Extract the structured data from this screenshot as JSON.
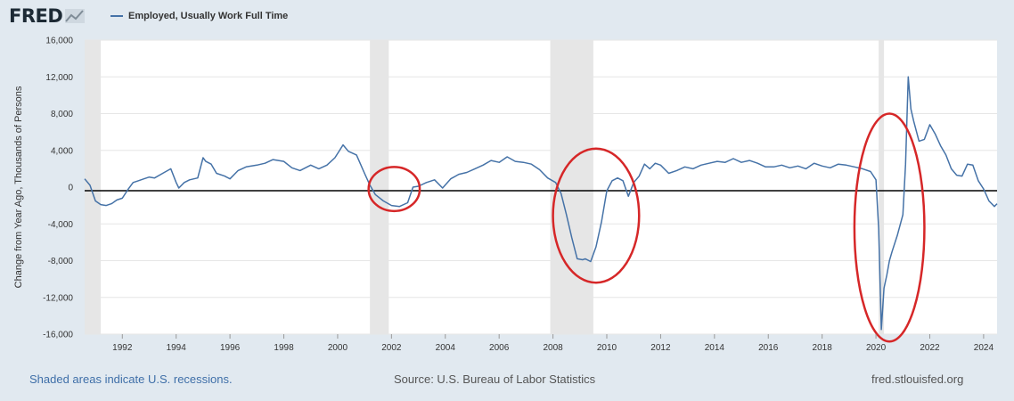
{
  "brand": {
    "logo_text": "FRED"
  },
  "colors": {
    "series": "#4572a7",
    "recession": "#e6e6e6",
    "annotation": "#d62728",
    "zero_line": "#000000",
    "background": "#e1e9f0",
    "plot_background": "#ffffff"
  },
  "footer": {
    "note": "Shaded areas indicate U.S. recessions.",
    "source": "Source: U.S. Bureau of Labor Statistics",
    "site": "fred.stlouisfed.org"
  },
  "chart_data": {
    "type": "line",
    "title": "",
    "xlabel": "",
    "ylabel": "Change from Year Ago, Thousands of Persons",
    "xlim": [
      1990.6,
      2024.5
    ],
    "ylim": [
      -16000,
      16000
    ],
    "grid": true,
    "legend": "top-left",
    "y_ticks": [
      16000,
      12000,
      8000,
      4000,
      0,
      -4000,
      -8000,
      -12000,
      -16000
    ],
    "y_tick_labels": [
      "16,000",
      "12,000",
      "8,000",
      "4,000",
      "0",
      "-4,000",
      "-8,000",
      "-12,000",
      "-16,000"
    ],
    "x_ticks": [
      1992,
      1994,
      1996,
      1998,
      2000,
      2002,
      2004,
      2006,
      2008,
      2010,
      2012,
      2014,
      2016,
      2018,
      2020,
      2022,
      2024
    ],
    "x_tick_labels": [
      "1992",
      "1994",
      "1996",
      "1998",
      "2000",
      "2002",
      "2004",
      "2006",
      "2008",
      "2010",
      "2012",
      "2014",
      "2016",
      "2018",
      "2020",
      "2022",
      "2024"
    ],
    "recessions": [
      [
        1990.6,
        1991.2
      ],
      [
        2001.2,
        2001.9
      ],
      [
        2007.9,
        2009.5
      ],
      [
        2020.1,
        2020.3
      ]
    ],
    "annotations": [
      {
        "type": "ellipse",
        "center": [
          2002.1,
          -200
        ],
        "radius": [
          0.95,
          2400
        ]
      },
      {
        "type": "ellipse",
        "center": [
          2009.6,
          -3100
        ],
        "radius": [
          1.6,
          7300
        ]
      },
      {
        "type": "ellipse",
        "center": [
          2020.5,
          -4400
        ],
        "radius": [
          1.3,
          12400
        ]
      }
    ],
    "series": [
      {
        "name": "Employed, Usually Work Full Time",
        "x": [
          1990.6,
          1990.8,
          1991.0,
          1991.2,
          1991.4,
          1991.6,
          1991.8,
          1992.0,
          1992.2,
          1992.4,
          1992.6,
          1992.8,
          1993.0,
          1993.2,
          1993.5,
          1993.8,
          1994.0,
          1994.1,
          1994.3,
          1994.5,
          1994.8,
          1995.0,
          1995.1,
          1995.3,
          1995.5,
          1995.8,
          1996.0,
          1996.3,
          1996.6,
          1997.0,
          1997.3,
          1997.6,
          1998.0,
          1998.3,
          1998.6,
          1999.0,
          1999.3,
          1999.6,
          1999.9,
          2000.2,
          2000.4,
          2000.7,
          2001.0,
          2001.2,
          2001.4,
          2001.7,
          2002.0,
          2002.3,
          2002.6,
          2002.8,
          2003.0,
          2003.3,
          2003.6,
          2003.9,
          2004.2,
          2004.5,
          2004.8,
          2005.1,
          2005.4,
          2005.7,
          2006.0,
          2006.3,
          2006.6,
          2006.9,
          2007.2,
          2007.5,
          2007.8,
          2008.1,
          2008.3,
          2008.5,
          2008.7,
          2008.9,
          2009.1,
          2009.2,
          2009.4,
          2009.6,
          2009.8,
          2010.0,
          2010.2,
          2010.4,
          2010.6,
          2010.8,
          2011.0,
          2011.2,
          2011.4,
          2011.6,
          2011.8,
          2012.0,
          2012.3,
          2012.6,
          2012.9,
          2013.2,
          2013.5,
          2013.8,
          2014.1,
          2014.4,
          2014.7,
          2015.0,
          2015.3,
          2015.6,
          2015.9,
          2016.2,
          2016.5,
          2016.8,
          2017.1,
          2017.4,
          2017.7,
          2018.0,
          2018.3,
          2018.6,
          2018.9,
          2019.2,
          2019.5,
          2019.8,
          2020.0,
          2020.1,
          2020.2,
          2020.3,
          2020.4,
          2020.5,
          2020.6,
          2020.8,
          2021.0,
          2021.1,
          2021.2,
          2021.3,
          2021.4,
          2021.6,
          2021.8,
          2022.0,
          2022.2,
          2022.4,
          2022.6,
          2022.8,
          2023.0,
          2023.2,
          2023.4,
          2023.6,
          2023.8,
          2024.0,
          2024.2,
          2024.4,
          2024.5
        ],
        "values": [
          900,
          200,
          -1500,
          -1900,
          -2000,
          -1800,
          -1400,
          -1200,
          -300,
          500,
          700,
          900,
          1100,
          1000,
          1500,
          2000,
          500,
          -100,
          500,
          800,
          1000,
          3200,
          2800,
          2500,
          1500,
          1200,
          900,
          1800,
          2200,
          2400,
          2600,
          3000,
          2800,
          2100,
          1800,
          2400,
          2000,
          2400,
          3200,
          4600,
          3900,
          3500,
          1500,
          200,
          -800,
          -1500,
          -2000,
          -2100,
          -1700,
          0,
          100,
          500,
          800,
          -100,
          900,
          1400,
          1600,
          2000,
          2400,
          2900,
          2700,
          3300,
          2800,
          2700,
          2500,
          1900,
          1000,
          500,
          -700,
          -3000,
          -5500,
          -7800,
          -7900,
          -7800,
          -8100,
          -6500,
          -3800,
          -400,
          700,
          1000,
          700,
          -1000,
          500,
          1200,
          2500,
          2000,
          2600,
          2400,
          1500,
          1800,
          2200,
          2000,
          2400,
          2600,
          2800,
          2700,
          3100,
          2700,
          2900,
          2600,
          2200,
          2200,
          2400,
          2100,
          2300,
          2000,
          2600,
          2300,
          2100,
          2500,
          2400,
          2200,
          2000,
          1700,
          800,
          -4500,
          -15500,
          -11000,
          -9600,
          -8000,
          -7000,
          -5200,
          -3000,
          2500,
          12000,
          8500,
          7200,
          5000,
          5200,
          6800,
          5800,
          4500,
          3500,
          2000,
          1300,
          1200,
          2500,
          2400,
          700,
          -200,
          -1500,
          -2100,
          -1800
        ]
      }
    ]
  }
}
